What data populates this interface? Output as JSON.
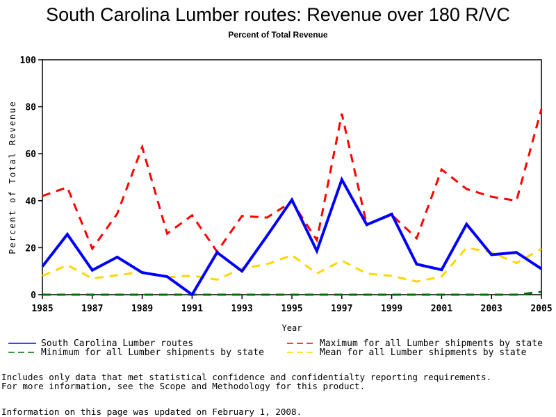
{
  "chart_data": {
    "type": "line",
    "title": "South Carolina Lumber routes: Revenue over 180 R/VC",
    "subtitle": "Percent of Total Revenue",
    "xlabel": "Year",
    "ylabel": "Percent of Total Revenue",
    "xlim": [
      1985,
      2005
    ],
    "ylim": [
      0,
      100
    ],
    "x_ticks": [
      1985,
      1987,
      1989,
      1991,
      1993,
      1995,
      1997,
      1999,
      2001,
      2003,
      2005
    ],
    "y_ticks": [
      0,
      20,
      40,
      60,
      80,
      100
    ],
    "grid": false,
    "legend_position": "bottom",
    "x": [
      1985,
      1986,
      1987,
      1988,
      1989,
      1990,
      1991,
      1992,
      1993,
      1994,
      1995,
      1996,
      1997,
      1998,
      1999,
      2000,
      2001,
      2002,
      2003,
      2004,
      2005
    ],
    "series": [
      {
        "name": "South Carolina Lumber routes",
        "color": "#0000ff",
        "style": "solid",
        "values": [
          12,
          25.7,
          10.4,
          16,
          9.4,
          7.7,
          0,
          18,
          10,
          25,
          40.4,
          18.6,
          49,
          29.8,
          34.3,
          13,
          10.6,
          30,
          17,
          18,
          11
        ]
      },
      {
        "name": "Maximum for all Lumber shipments by state",
        "color": "#ff0000",
        "style": "dashed",
        "values": [
          42,
          45.7,
          19.6,
          34.5,
          62.8,
          26,
          33.8,
          18.3,
          33.5,
          32.8,
          39.6,
          23.2,
          77,
          29.8,
          34,
          24,
          53.3,
          45,
          41.7,
          40,
          79
        ]
      },
      {
        "name": "Minimum for all Lumber shipments by state",
        "color": "#007000",
        "style": "dashed",
        "values": [
          0,
          0,
          0,
          0,
          0,
          0,
          0,
          0,
          0,
          0,
          0,
          0,
          0,
          0,
          0,
          0,
          0,
          0,
          0,
          0,
          1.2
        ]
      },
      {
        "name": "Mean for all Lumber shipments by state",
        "color": "#ffd700",
        "style": "dashed",
        "values": [
          8,
          12.6,
          6.9,
          8.3,
          9.7,
          7.4,
          8.1,
          6.4,
          11.2,
          13,
          16.8,
          9,
          14.5,
          9,
          8,
          5.6,
          7.7,
          20,
          18,
          13.5,
          19.5
        ]
      }
    ]
  },
  "legend": [
    {
      "label": "South Carolina Lumber routes",
      "series": 0
    },
    {
      "label": "Maximum for all Lumber shipments by state",
      "series": 1
    },
    {
      "label": "Minimum for all Lumber shipments by state",
      "series": 2
    },
    {
      "label": "Mean for all Lumber shipments by state",
      "series": 3
    }
  ],
  "footnotes": {
    "line1": "Includes only data that met statistical confidence and confidentialty reporting requirements.",
    "line2": "For more information, see the Scope and Methodology for this product.",
    "updated": "Information on this page was updated on February 1, 2008."
  }
}
